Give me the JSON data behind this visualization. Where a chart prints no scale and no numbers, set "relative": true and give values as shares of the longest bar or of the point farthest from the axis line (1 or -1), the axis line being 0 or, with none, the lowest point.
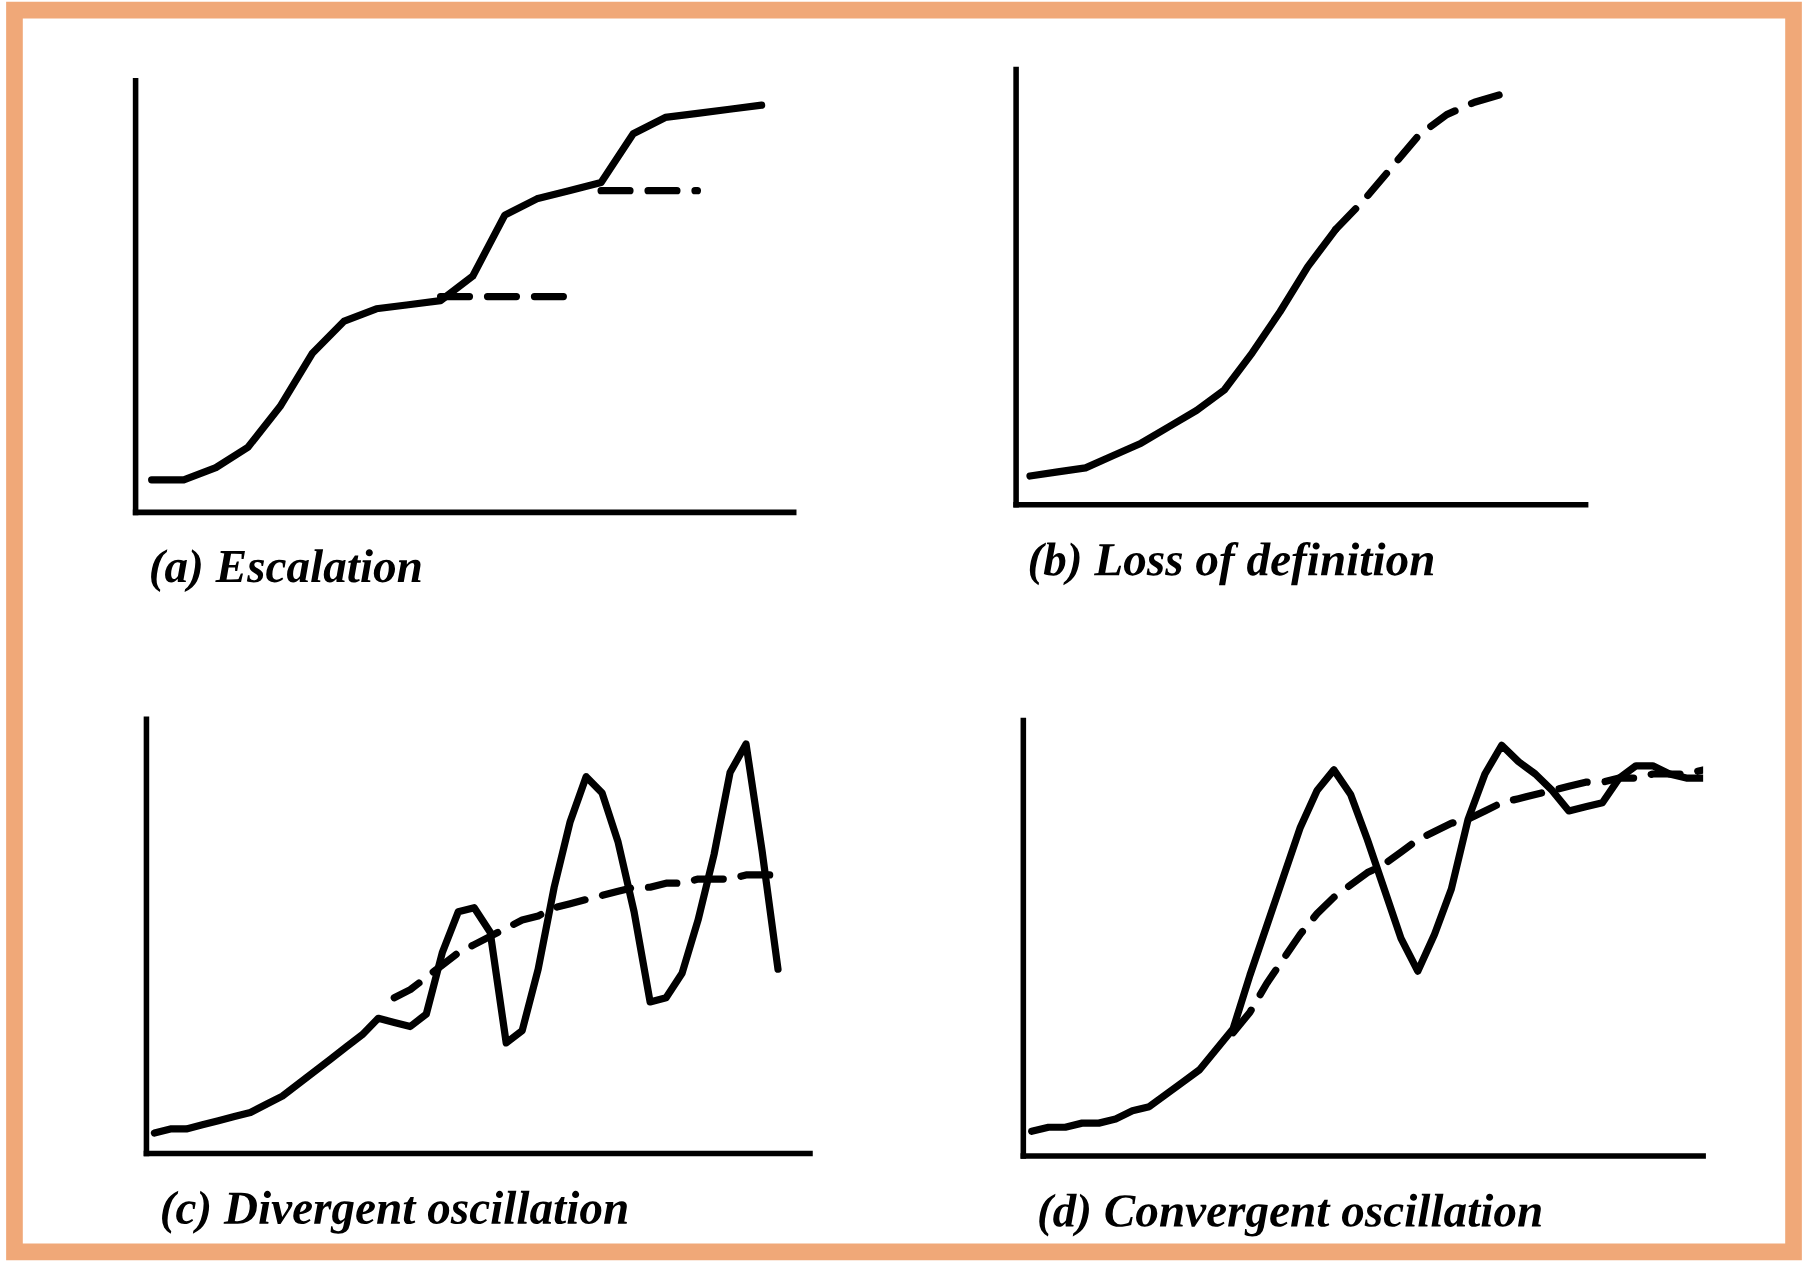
{
  "chart_data": [
    {
      "type": "line",
      "title": "(a) Escalation",
      "relative": true,
      "legend": false,
      "grid": false,
      "categories": [
        null,
        null,
        null,
        null,
        null,
        null,
        null,
        null,
        null,
        null,
        null,
        null,
        null,
        null,
        null,
        null,
        null,
        null,
        null,
        null,
        null
      ],
      "series": [
        {
          "color": "#000000",
          "line_style": "solid",
          "values": [
            0.08,
            0.08,
            0.11,
            0.16,
            0.26,
            0.39,
            0.47,
            0.5,
            0.51,
            0.52,
            0.58,
            0.73,
            0.77,
            0.79,
            0.81,
            0.93,
            0.97,
            0.98,
            0.99,
            1,
            null
          ]
        },
        {
          "color": "#000000",
          "line_style": "dashed",
          "values": [
            null,
            null,
            null,
            null,
            null,
            null,
            null,
            null,
            null,
            0.53,
            0.53,
            0.53,
            0.53,
            0.53,
            null,
            null,
            null,
            null,
            null,
            null,
            null
          ]
        },
        {
          "color": "#000000",
          "line_style": "dashed",
          "values": [
            null,
            null,
            null,
            null,
            null,
            null,
            null,
            null,
            null,
            null,
            null,
            null,
            null,
            null,
            0.79,
            0.79,
            0.79,
            0.79,
            null,
            null,
            null
          ]
        }
      ]
    },
    {
      "type": "line",
      "title": "(b) Loss of definition",
      "relative": true,
      "legend": false,
      "grid": false,
      "categories": [
        null,
        null,
        null,
        null,
        null,
        null,
        null,
        null,
        null,
        null,
        null,
        null,
        null,
        null,
        null,
        null,
        null,
        null,
        null,
        null,
        null
      ],
      "series": [
        {
          "color": "#000000",
          "line_style": "solid",
          "values": [
            0.07,
            0.08,
            0.09,
            0.12,
            0.15,
            0.19,
            0.23,
            0.28,
            0.37,
            0.47,
            0.58,
            0.67,
            null,
            null,
            null,
            null,
            null,
            null,
            null,
            null,
            null
          ]
        },
        {
          "color": "#000000",
          "line_style": "dashed",
          "values": [
            null,
            null,
            null,
            null,
            null,
            null,
            null,
            null,
            null,
            null,
            null,
            0.67,
            0.74,
            0.82,
            0.9,
            0.95,
            0.98,
            1,
            null,
            null,
            null
          ]
        }
      ]
    },
    {
      "type": "line",
      "title": "(c) Divergent oscillation",
      "relative": true,
      "legend": false,
      "grid": false,
      "categories": [
        null,
        null,
        null,
        null,
        null,
        null,
        null,
        null,
        null,
        null,
        null,
        null,
        null,
        null,
        null,
        null,
        null,
        null,
        null,
        null,
        null,
        null,
        null,
        null,
        null,
        null,
        null,
        null,
        null,
        null,
        null,
        null,
        null,
        null,
        null,
        null,
        null,
        null,
        null,
        null,
        null,
        null
      ],
      "series": [
        {
          "color": "#000000",
          "line_style": "solid",
          "values": [
            0.05,
            0.06,
            0.06,
            0.07,
            0.08,
            0.09,
            0.1,
            0.12,
            0.14,
            0.17,
            0.2,
            0.23,
            0.26,
            0.29,
            0.33,
            0.32,
            0.31,
            0.34,
            0.49,
            0.59,
            0.6,
            0.54,
            0.27,
            0.3,
            0.45,
            0.65,
            0.81,
            0.92,
            0.88,
            0.76,
            0.59,
            0.37,
            0.38,
            0.44,
            0.57,
            0.73,
            0.93,
            1,
            0.74,
            0.45,
            null,
            null
          ]
        },
        {
          "color": "#000000",
          "line_style": "dashed",
          "values": [
            null,
            null,
            null,
            null,
            null,
            null,
            null,
            null,
            null,
            null,
            null,
            null,
            null,
            null,
            null,
            0.38,
            0.4,
            0.43,
            0.46,
            0.49,
            0.51,
            0.53,
            0.55,
            0.57,
            0.58,
            0.6,
            0.61,
            0.62,
            0.63,
            0.64,
            0.65,
            0.65,
            0.66,
            0.66,
            0.67,
            0.67,
            0.67,
            0.68,
            0.68,
            0.68,
            null,
            null
          ]
        }
      ]
    },
    {
      "type": "line",
      "title": "(d) Convergent oscillation",
      "relative": true,
      "legend": false,
      "grid": false,
      "categories": [
        null,
        null,
        null,
        null,
        null,
        null,
        null,
        null,
        null,
        null,
        null,
        null,
        null,
        null,
        null,
        null,
        null,
        null,
        null,
        null,
        null,
        null,
        null,
        null,
        null,
        null,
        null,
        null,
        null,
        null,
        null,
        null,
        null,
        null,
        null,
        null,
        null,
        null,
        null,
        null,
        null
      ],
      "series": [
        {
          "color": "#000000",
          "line_style": "solid",
          "values": [
            0.06,
            0.07,
            0.07,
            0.08,
            0.08,
            0.09,
            0.11,
            0.12,
            0.15,
            0.18,
            0.21,
            0.26,
            0.31,
            0.44,
            0.56,
            0.68,
            0.8,
            0.89,
            0.94,
            0.88,
            0.77,
            0.65,
            0.53,
            0.45,
            0.54,
            0.65,
            0.82,
            0.93,
            1,
            0.96,
            0.93,
            0.89,
            0.84,
            0.85,
            0.86,
            0.92,
            0.95,
            0.95,
            0.93,
            0.92,
            0.92
          ]
        },
        {
          "color": "#000000",
          "line_style": "dashed",
          "values": [
            null,
            null,
            null,
            null,
            null,
            null,
            null,
            null,
            null,
            null,
            null,
            null,
            0.3,
            0.35,
            0.42,
            0.48,
            0.54,
            0.59,
            0.63,
            0.66,
            0.69,
            0.71,
            0.74,
            0.77,
            0.79,
            0.81,
            0.82,
            0.84,
            0.86,
            0.87,
            0.88,
            0.89,
            0.9,
            0.91,
            0.91,
            0.92,
            0.92,
            0.93,
            0.93,
            0.93,
            0.94
          ]
        }
      ]
    }
  ]
}
